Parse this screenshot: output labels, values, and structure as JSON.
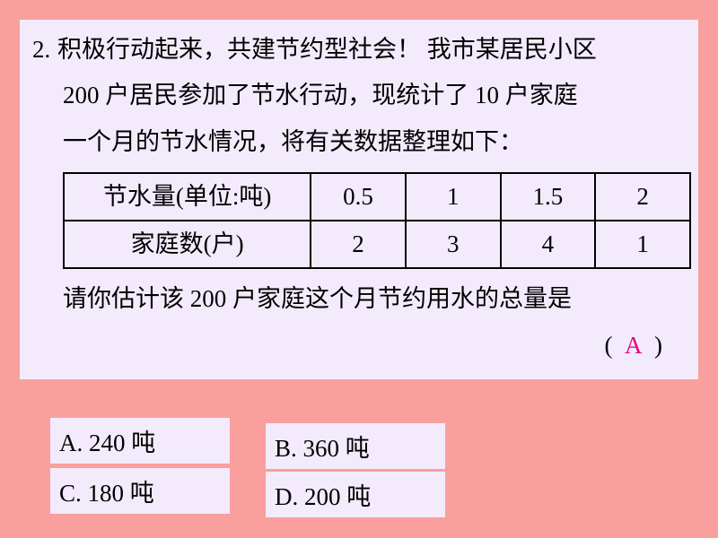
{
  "question": {
    "number": "2.",
    "line1": "积极行动起来，共建节约型社会！ 我市某居民小区",
    "line2": "200 户居民参加了节水行动，现统计了 10 户家庭",
    "line3": "一个月的节水情况，将有关数据整理如下：",
    "prompt": "请你估计该 200 户家庭这个月节约用水的总量是"
  },
  "table": {
    "row1_head": "节水量(单位:吨)",
    "row2_head": "家庭数(户)",
    "r1c1": "0.5",
    "r1c2": "1",
    "r1c3": "1.5",
    "r1c4": "2",
    "r2c1": "2",
    "r2c2": "3",
    "r2c3": "4",
    "r2c4": "1"
  },
  "answer": {
    "open": "(",
    "letter": "A",
    "close": ")"
  },
  "options": {
    "A": "A. 240 吨",
    "B": "B. 360 吨",
    "C": "C. 180 吨",
    "D": "D. 200 吨"
  },
  "colors": {
    "page_bg": "#f99f9d",
    "box_bg": "#f3ebfc",
    "text": "#000000",
    "answer": "#e6007e",
    "border": "#000000"
  }
}
